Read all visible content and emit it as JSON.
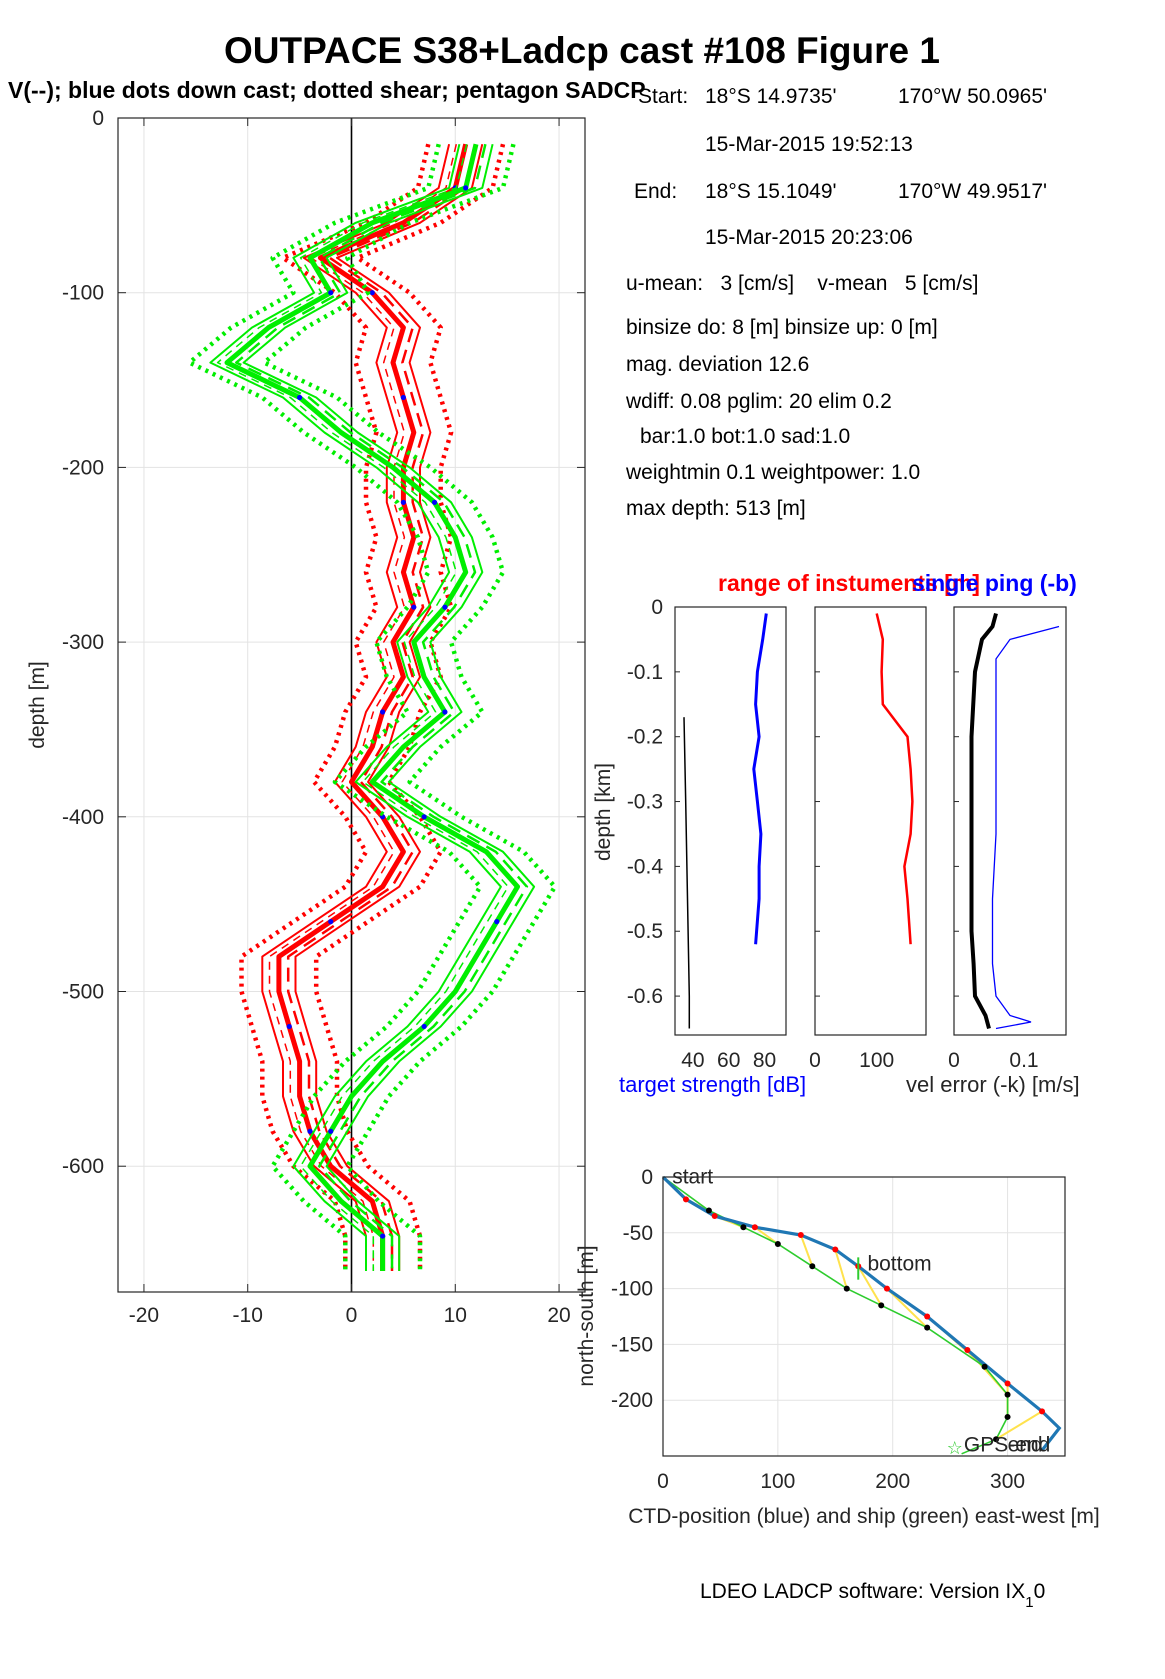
{
  "figure": {
    "title": "OUTPACE S38+Ladcp cast #108  Figure 1",
    "subtitle": "V(--); blue dots down cast; dotted shear; pentagon SADCP",
    "footer": "LDEO LADCP software: Version IX",
    "footer_sub": "1",
    "footer_tail": "0"
  },
  "info": {
    "start_label": "Start:",
    "start_lat": "18°S 14.9735'",
    "start_lon": "170°W 50.0965'",
    "start_time": "15-Mar-2015 19:52:13",
    "end_label": "End:",
    "end_lat": "18°S 15.1049'",
    "end_lon": "170°W 49.9517'",
    "end_time": "15-Mar-2015 20:23:06",
    "mean": "u-mean:   3 [cm/s]    v-mean   5 [cm/s]",
    "binsize": "binsize do: 8 [m]  binsize up:  0 [m]",
    "magdev": "mag. deviation 12.6",
    "wdiff": "wdiff: 0.08  pglim: 20  elim 0.2",
    "weights": "bar:1.0 bot:1.0 sad:1.0",
    "weightmin": "weightmin 0.1  weightpower: 1.0",
    "maxdepth": "max depth: 513 [m]"
  },
  "colors": {
    "u": "#ff0000",
    "v": "#00ee00",
    "dots": "#0000ff",
    "ctd": "#1f77b4",
    "ship": "#2ecc2e",
    "link": "#ffe24d"
  },
  "chart_data": [
    {
      "type": "line",
      "name": "velocity-profile",
      "ylabel": "depth [m]",
      "xlabel": "",
      "xlim": [
        -22.5,
        22.5
      ],
      "ylim": [
        -672,
        0
      ],
      "xticks": [
        -20,
        -10,
        0,
        10,
        20
      ],
      "yticks": [
        0,
        -100,
        -200,
        -300,
        -400,
        -500,
        -600
      ],
      "depth": [
        -15,
        -40,
        -60,
        -80,
        -100,
        -120,
        -140,
        -160,
        -180,
        -200,
        -220,
        -240,
        -260,
        -280,
        -300,
        -320,
        -340,
        -360,
        -380,
        -400,
        -420,
        -440,
        -460,
        -480,
        -500,
        -520,
        -540,
        -560,
        -580,
        -600,
        -620,
        -640,
        -660
      ],
      "series": [
        {
          "component": "u",
          "values": [
            11,
            10,
            5,
            -3,
            2,
            5,
            4,
            5,
            6,
            5,
            5,
            6,
            5,
            6,
            4,
            5,
            3,
            2,
            0,
            3,
            5,
            3,
            -2,
            -7,
            -7,
            -6,
            -5,
            -5,
            -4,
            -2,
            2,
            3,
            3
          ]
        },
        {
          "component": "v",
          "values": [
            12,
            11,
            2,
            -4,
            -2,
            -8,
            -12,
            -5,
            -1,
            4,
            8,
            10,
            11,
            9,
            6,
            7,
            9,
            5,
            2,
            7,
            13,
            16,
            14,
            12,
            10,
            7,
            3,
            0,
            -2,
            -4,
            -1,
            3,
            3
          ]
        }
      ]
    },
    {
      "type": "line",
      "name": "instrument-panels",
      "title_left": "range of instuments [m]",
      "title_right": "single ping (-b)",
      "ylabel": "depth [km]",
      "xlabel_left": "target strength [dB]",
      "xlabel_right": "vel error (-k) [m/s]",
      "ylim": [
        -0.66,
        0
      ],
      "yticks": [
        0,
        -0.1,
        -0.2,
        -0.3,
        -0.4,
        -0.5,
        -0.6
      ],
      "panel1_xticks": [
        40,
        60,
        80
      ],
      "panel2_xticks": [
        0,
        100
      ],
      "panel3_xticks": [
        0,
        0.1
      ],
      "target_strength": {
        "depth": [
          -0.01,
          -0.05,
          -0.1,
          -0.15,
          -0.2,
          -0.25,
          -0.3,
          -0.35,
          -0.4,
          -0.45,
          -0.52
        ],
        "values": [
          81,
          79,
          76,
          75,
          77,
          74,
          76,
          78,
          77,
          77,
          75
        ]
      },
      "range": {
        "depth": [
          -0.01,
          -0.05,
          -0.1,
          -0.15,
          -0.2,
          -0.25,
          -0.3,
          -0.35,
          -0.4,
          -0.45,
          -0.52
        ],
        "values": [
          100,
          110,
          108,
          110,
          150,
          155,
          158,
          155,
          145,
          150,
          155
        ]
      },
      "vel_error_k": {
        "depth": [
          -0.01,
          -0.03,
          -0.05,
          -0.1,
          -0.2,
          -0.3,
          -0.4,
          -0.5,
          -0.55,
          -0.6,
          -0.63,
          -0.65
        ],
        "values": [
          0.06,
          0.055,
          0.04,
          0.03,
          0.025,
          0.025,
          0.025,
          0.025,
          0.028,
          0.03,
          0.045,
          0.05
        ]
      },
      "vel_error_b": {
        "depth": [
          -0.03,
          -0.05,
          -0.08,
          -0.15,
          -0.25,
          -0.35,
          -0.45,
          -0.55,
          -0.6,
          -0.63,
          -0.64,
          -0.65
        ],
        "values": [
          0.15,
          0.08,
          0.06,
          0.06,
          0.06,
          0.06,
          0.055,
          0.055,
          0.06,
          0.08,
          0.11,
          0.06
        ]
      }
    },
    {
      "type": "line",
      "name": "position-plot",
      "xlabel": "CTD-position (blue) and ship (green) east-west [m]",
      "ylabel": "north-south [m]",
      "xlim": [
        0,
        350
      ],
      "ylim": [
        -250,
        0
      ],
      "xticks": [
        0,
        100,
        200,
        300
      ],
      "yticks": [
        0,
        -50,
        -100,
        -150,
        -200
      ],
      "labels": {
        "start": "start",
        "bottom": "bottom",
        "end": "end",
        "gps_end": "GPS-end"
      },
      "ctd": {
        "x": [
          0,
          20,
          45,
          80,
          120,
          150,
          170,
          195,
          230,
          265,
          300,
          330,
          345,
          330
        ],
        "y": [
          0,
          -20,
          -35,
          -45,
          -52,
          -65,
          -80,
          -100,
          -125,
          -155,
          -185,
          -210,
          -225,
          -245
        ]
      },
      "ship": {
        "x": [
          0,
          40,
          70,
          100,
          130,
          160,
          190,
          230,
          280,
          300,
          300,
          290,
          260
        ],
        "y": [
          0,
          -30,
          -45,
          -60,
          -80,
          -100,
          -115,
          -135,
          -170,
          -195,
          -215,
          -235,
          -248
        ]
      }
    }
  ]
}
